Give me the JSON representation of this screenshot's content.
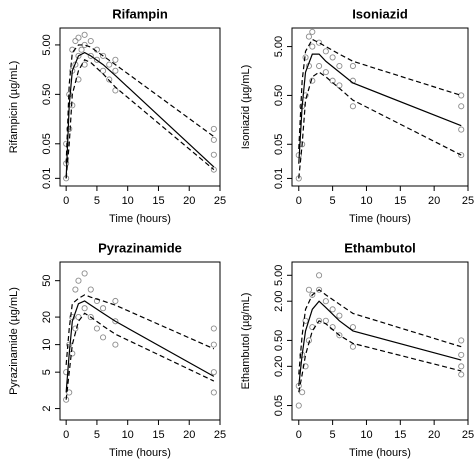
{
  "chart_data": [
    {
      "type": "scatter",
      "title": "Rifampin",
      "xlabel": "Time (hours)",
      "ylabel": "Rifampicin (µg/mL)",
      "log_y": true,
      "xlim": [
        -1,
        25
      ],
      "xticks": [
        0,
        5,
        10,
        15,
        20,
        25
      ],
      "ylim": [
        0.007,
        11
      ],
      "yticks": [
        {
          "value": 0.01,
          "label": "0.01"
        },
        {
          "value": 0.05,
          "label": "0.05"
        },
        {
          "value": 0.5,
          "label": "0.50"
        },
        {
          "value": 5,
          "label": "5.00"
        }
      ],
      "series": [
        {
          "marker": "open-circle",
          "color": "#8c8c8c",
          "x": [
            0,
            0,
            0,
            0.5,
            0.5,
            1,
            1,
            1,
            1.5,
            1.5,
            2,
            2,
            2,
            2.5,
            3,
            3,
            3,
            4,
            4,
            5,
            5,
            6,
            6,
            7,
            7,
            8,
            8,
            8,
            24,
            24,
            24,
            24
          ],
          "values": [
            0.01,
            0.02,
            0.05,
            0.1,
            0.5,
            0.3,
            1.5,
            4,
            2,
            6,
            1,
            3,
            7,
            4,
            2,
            5,
            8,
            3,
            6,
            2.5,
            4,
            1.5,
            3,
            1,
            2,
            0.6,
            1.5,
            2.5,
            0.015,
            0.03,
            0.06,
            0.1
          ]
        },
        {
          "line": "solid",
          "color": "#000000",
          "x": [
            0,
            0.5,
            1,
            2,
            3,
            4,
            6,
            8,
            24
          ],
          "values": [
            0.01,
            0.3,
            1.5,
            3,
            3.5,
            3,
            2,
            1.2,
            0.017
          ]
        },
        {
          "line": "dashed",
          "color": "#000000",
          "x": [
            0,
            0.5,
            1,
            2,
            3,
            4,
            6,
            8,
            24
          ],
          "values": [
            0.02,
            0.8,
            3.5,
            5,
            5,
            4.5,
            3,
            2,
            0.07
          ]
        },
        {
          "line": "dashed",
          "color": "#000000",
          "x": [
            0,
            0.5,
            1,
            2,
            3,
            4,
            6,
            8,
            24
          ],
          "values": [
            0.01,
            0.05,
            0.5,
            1.5,
            2.5,
            2.2,
            1.3,
            0.7,
            0.015
          ]
        }
      ]
    },
    {
      "type": "scatter",
      "title": "Isoniazid",
      "xlabel": "Time (hours)",
      "ylabel": "Isoniazid (µg/mL)",
      "log_y": true,
      "xlim": [
        -1,
        25
      ],
      "xticks": [
        0,
        5,
        10,
        15,
        20,
        25
      ],
      "ylim": [
        0.007,
        12
      ],
      "yticks": [
        {
          "value": 0.01,
          "label": "0.01"
        },
        {
          "value": 0.05,
          "label": "0.05"
        },
        {
          "value": 0.5,
          "label": "0.50"
        },
        {
          "value": 5,
          "label": "5.00"
        }
      ],
      "series": [
        {
          "marker": "open-circle",
          "color": "#8c8c8c",
          "x": [
            0,
            0,
            0.5,
            0.5,
            1,
            1,
            1.5,
            1.5,
            2,
            2,
            2,
            3,
            3,
            4,
            4,
            5,
            5,
            6,
            6,
            8,
            8,
            8,
            24,
            24,
            24,
            24
          ],
          "values": [
            0.01,
            0.03,
            0.05,
            0.3,
            0.5,
            3,
            2,
            8,
            1,
            5,
            10,
            2,
            6,
            1.5,
            4,
            1,
            3,
            0.8,
            2,
            0.3,
            1,
            2,
            0.03,
            0.1,
            0.3,
            0.5
          ]
        },
        {
          "line": "solid",
          "color": "#000000",
          "x": [
            0,
            0.5,
            1,
            2,
            3,
            4,
            6,
            8,
            24
          ],
          "values": [
            0.02,
            0.3,
            1.5,
            3.5,
            3.5,
            2.5,
            1.5,
            0.9,
            0.12
          ]
        },
        {
          "line": "dashed",
          "color": "#000000",
          "x": [
            0,
            0.5,
            1,
            2,
            3,
            4,
            6,
            8,
            24
          ],
          "values": [
            0.04,
            1,
            4,
            7,
            6,
            5,
            3.5,
            2.5,
            0.5
          ]
        },
        {
          "line": "dashed",
          "color": "#000000",
          "x": [
            0,
            0.5,
            1,
            2,
            3,
            4,
            6,
            8,
            24
          ],
          "values": [
            0.01,
            0.05,
            0.4,
            1.2,
            1.5,
            1.2,
            0.7,
            0.4,
            0.03
          ]
        }
      ]
    },
    {
      "type": "scatter",
      "title": "Pyrazinamide",
      "xlabel": "Time (hours)",
      "ylabel": "Pyrazinamide (µg/mL)",
      "log_y": true,
      "xlim": [
        -1,
        25
      ],
      "xticks": [
        0,
        5,
        10,
        15,
        20,
        25
      ],
      "ylim": [
        1.5,
        80
      ],
      "yticks": [
        2,
        5,
        10,
        20,
        50
      ],
      "series": [
        {
          "marker": "open-circle",
          "color": "#8c8c8c",
          "x": [
            0,
            0,
            0.5,
            0.5,
            1,
            1,
            1.5,
            1.5,
            2,
            2,
            3,
            3,
            4,
            4,
            5,
            5,
            6,
            6,
            8,
            8,
            8,
            24,
            24,
            24,
            24
          ],
          "values": [
            2.5,
            5,
            3,
            10,
            8,
            20,
            15,
            40,
            20,
            50,
            25,
            60,
            20,
            40,
            15,
            30,
            12,
            25,
            10,
            18,
            30,
            3,
            5,
            10,
            15
          ]
        },
        {
          "line": "solid",
          "color": "#000000",
          "x": [
            0,
            0.5,
            1,
            2,
            3,
            4,
            6,
            8,
            24
          ],
          "values": [
            3,
            8,
            18,
            28,
            30,
            27,
            22,
            18,
            4.5
          ]
        },
        {
          "line": "dashed",
          "color": "#000000",
          "x": [
            0,
            0.5,
            1,
            2,
            3,
            4,
            6,
            8,
            24
          ],
          "values": [
            6,
            15,
            28,
            32,
            35,
            33,
            30,
            27,
            9
          ]
        },
        {
          "line": "dashed",
          "color": "#000000",
          "x": [
            0,
            0.5,
            1,
            2,
            3,
            4,
            6,
            8,
            24
          ],
          "values": [
            2.5,
            5,
            10,
            18,
            22,
            20,
            16,
            13,
            4
          ]
        }
      ]
    },
    {
      "type": "scatter",
      "title": "Ethambutol",
      "xlabel": "Time (hours)",
      "ylabel": "Ethambutol (µg/mL)",
      "log_y": true,
      "xlim": [
        -1,
        25
      ],
      "xticks": [
        0,
        5,
        10,
        15,
        20,
        25
      ],
      "ylim": [
        0.03,
        8
      ],
      "yticks": [
        {
          "value": 0.05,
          "label": "0.05"
        },
        {
          "value": 0.2,
          "label": "0.20"
        },
        {
          "value": 0.5,
          "label": "0.50"
        },
        {
          "value": 2,
          "label": "2.00"
        },
        {
          "value": 5,
          "label": "5.00"
        }
      ],
      "series": [
        {
          "marker": "open-circle",
          "color": "#8c8c8c",
          "x": [
            0,
            0,
            0.5,
            0.5,
            1,
            1,
            1.5,
            1.5,
            2,
            2,
            3,
            3,
            3,
            4,
            4,
            5,
            5,
            6,
            6,
            8,
            8,
            24,
            24,
            24,
            24
          ],
          "values": [
            0.05,
            0.1,
            0.08,
            0.3,
            0.2,
            1,
            0.5,
            3,
            0.8,
            2.5,
            1,
            3,
            5,
            1,
            2,
            0.8,
            1.5,
            0.6,
            1.2,
            0.4,
            0.8,
            0.15,
            0.2,
            0.3,
            0.5
          ]
        },
        {
          "line": "solid",
          "color": "#000000",
          "x": [
            0,
            0.5,
            1,
            2,
            3,
            4,
            6,
            8,
            24
          ],
          "values": [
            0.1,
            0.3,
            0.7,
            1.5,
            2,
            1.6,
            1,
            0.7,
            0.25
          ]
        },
        {
          "line": "dashed",
          "color": "#000000",
          "x": [
            0,
            0.5,
            1,
            2,
            3,
            4,
            6,
            8,
            24
          ],
          "values": [
            0.15,
            0.6,
            1.5,
            2.5,
            3,
            2.5,
            1.8,
            1.3,
            0.4
          ]
        },
        {
          "line": "dashed",
          "color": "#000000",
          "x": [
            0,
            0.5,
            1,
            2,
            3,
            4,
            6,
            8,
            24
          ],
          "values": [
            0.08,
            0.15,
            0.3,
            0.7,
            1,
            0.9,
            0.6,
            0.45,
            0.17
          ]
        }
      ]
    }
  ]
}
